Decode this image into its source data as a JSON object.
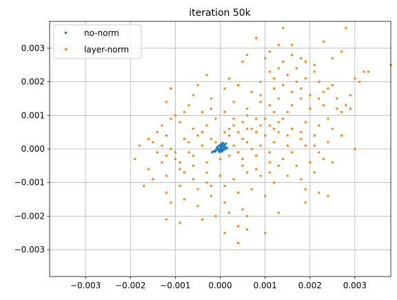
{
  "chart_data": {
    "type": "scatter",
    "title": "iteration 50k",
    "xlabel": "",
    "ylabel": "",
    "xlim": [
      -0.0038,
      0.0038
    ],
    "ylim": [
      -0.0038,
      0.0038
    ],
    "xticks": [
      -0.003,
      -0.002,
      -0.001,
      0.0,
      0.001,
      0.002,
      0.003
    ],
    "xtick_labels": [
      "−0.003",
      "−0.002",
      "−0.001",
      "0.000",
      "0.001",
      "0.002",
      "0.003"
    ],
    "yticks": [
      -0.003,
      -0.002,
      -0.001,
      0.0,
      0.001,
      0.002,
      0.003
    ],
    "ytick_labels": [
      "−0.003",
      "−0.002",
      "−0.001",
      "0.000",
      "0.001",
      "0.002",
      "0.003"
    ],
    "grid": true,
    "legend": "top-left",
    "series": [
      {
        "name": "no-norm",
        "color": "#1f77b4",
        "points": [
          [
            0.0,
            0.0
          ],
          [
            -5e-05,
            3e-05
          ],
          [
            4e-05,
            6e-05
          ],
          [
            8e-05,
            -2e-05
          ],
          [
            -0.0001,
            -5e-05
          ],
          [
            2e-05,
            0.00012
          ],
          [
            6e-05,
            0.00018
          ],
          [
            -3e-05,
            0.0001
          ],
          [
            0.0001,
            8e-05
          ],
          [
            -0.00012,
            -8e-05
          ],
          [
            1e-05,
            -6e-05
          ],
          [
            0.00012,
            0.0
          ],
          [
            -7e-05,
            5e-05
          ],
          [
            3e-05,
            0.00015
          ],
          [
            9e-05,
            0.00013
          ],
          [
            -0.00015,
            -7e-05
          ],
          [
            5e-05,
            -3e-05
          ],
          [
            -2e-05,
            -9e-05
          ],
          [
            0.00011,
            5e-05
          ],
          [
            0.0,
            9e-05
          ],
          [
            -9e-05,
            -2e-05
          ],
          [
            7e-05,
            0.0001
          ],
          [
            4e-05,
            -8e-05
          ],
          [
            -6e-05,
            1e-05
          ],
          [
            0.00013,
            0.00016
          ],
          [
            -0.00018,
            -0.0001
          ],
          [
            2e-05,
            4e-05
          ],
          [
            0.00015,
            3e-05
          ],
          [
            -4e-05,
            -4e-05
          ],
          [
            6e-05,
            2e-05
          ]
        ]
      },
      {
        "name": "layer-norm",
        "color": "#ff7f0e",
        "points": [
          [
            0.0014,
            0.0036
          ],
          [
            0.0028,
            0.0036
          ],
          [
            0.0023,
            0.0032
          ],
          [
            0.0008,
            0.0033
          ],
          [
            0.0038,
            0.0025
          ],
          [
            0.0033,
            0.0023
          ],
          [
            0.0027,
            0.0029
          ],
          [
            0.0025,
            0.0027
          ],
          [
            0.003,
            0.0021
          ],
          [
            0.0031,
            0.002
          ],
          [
            0.0006,
            0.0028
          ],
          [
            0.001,
            0.0027
          ],
          [
            0.0005,
            0.0026
          ],
          [
            0.0016,
            0.0028
          ],
          [
            0.0019,
            0.0026
          ],
          [
            0.0013,
            0.0024
          ],
          [
            0.0015,
            0.0022
          ],
          [
            0.0012,
            0.0021
          ],
          [
            0.0017,
            0.002
          ],
          [
            0.0014,
            0.0019
          ],
          [
            0.0021,
            0.0023
          ],
          [
            0.0022,
            0.002
          ],
          [
            0.0024,
            0.0018
          ],
          [
            0.0026,
            0.0015
          ],
          [
            0.0029,
            0.0012
          ],
          [
            0.0027,
            0.0011
          ],
          [
            0.0023,
            0.0013
          ],
          [
            0.002,
            0.0012
          ],
          [
            0.0018,
            0.0015
          ],
          [
            0.0016,
            0.0013
          ],
          [
            0.0011,
            0.0023
          ],
          [
            0.0009,
            0.002
          ],
          [
            0.0007,
            0.0017
          ],
          [
            0.0004,
            0.0019
          ],
          [
            0.0002,
            0.0021
          ],
          [
            0.0001,
            0.0018
          ],
          [
            -0.0003,
            0.0022
          ],
          [
            -0.0005,
            0.0019
          ],
          [
            -0.0002,
            0.0015
          ],
          [
            -0.0006,
            0.0016
          ],
          [
            -0.0011,
            0.0018
          ],
          [
            -0.0007,
            0.0013
          ],
          [
            -0.001,
            0.001
          ],
          [
            -0.0012,
            0.0014
          ],
          [
            -0.0004,
            0.0011
          ],
          [
            0.0003,
            0.0014
          ],
          [
            0.0006,
            0.0012
          ],
          [
            0.0009,
            0.0016
          ],
          [
            0.0012,
            0.0011
          ],
          [
            0.0014,
            0.0009
          ],
          [
            0.0011,
            0.0007
          ],
          [
            0.0008,
            0.0009
          ],
          [
            0.0005,
            0.0008
          ],
          [
            0.0002,
            0.0006
          ],
          [
            -0.0001,
            0.0009
          ],
          [
            -0.0003,
            0.0007
          ],
          [
            -0.0006,
            0.0006
          ],
          [
            -0.0009,
            0.0008
          ],
          [
            -0.0013,
            0.0007
          ],
          [
            -0.0012,
            0.0004
          ],
          [
            -0.0015,
            0.0002
          ],
          [
            -0.0018,
            0.0001
          ],
          [
            -0.0014,
            -0.0001
          ],
          [
            -0.0011,
            0.0
          ],
          [
            -0.0008,
            0.0003
          ],
          [
            -0.0005,
            0.0004
          ],
          [
            -0.0002,
            0.0003
          ],
          [
            0.0001,
            0.0005
          ],
          [
            0.0004,
            0.0005
          ],
          [
            0.0007,
            0.0006
          ],
          [
            0.001,
            0.0004
          ],
          [
            0.0013,
            0.0005
          ],
          [
            0.0016,
            0.0006
          ],
          [
            0.0019,
            0.0008
          ],
          [
            0.0022,
            0.0007
          ],
          [
            0.0025,
            0.0006
          ],
          [
            0.0027,
            0.0004
          ],
          [
            0.003,
            0.0
          ],
          [
            0.0024,
            0.0002
          ],
          [
            0.0021,
            0.0001
          ],
          [
            0.0018,
            0.0003
          ],
          [
            0.0015,
            0.0001
          ],
          [
            0.0012,
            0.0002
          ],
          [
            0.0009,
            0.0001
          ],
          [
            0.0006,
            0.0002
          ],
          [
            0.0003,
            0.0001
          ],
          [
            -0.0004,
            0.0001
          ],
          [
            -0.0007,
            -0.0001
          ],
          [
            -0.001,
            -0.0003
          ],
          [
            -0.0013,
            -0.0004
          ],
          [
            -0.0016,
            -0.0006
          ],
          [
            -0.0019,
            -0.0003
          ],
          [
            -0.0015,
            -0.0009
          ],
          [
            -0.0017,
            -0.0011
          ],
          [
            -0.0012,
            -0.0008
          ],
          [
            -0.0009,
            -0.0006
          ],
          [
            -0.0006,
            -0.0005
          ],
          [
            -0.0003,
            -0.0004
          ],
          [
            0.0,
            -0.0003
          ],
          [
            0.0002,
            -0.0002
          ],
          [
            0.0005,
            -0.0003
          ],
          [
            0.0008,
            -0.0002
          ],
          [
            0.0011,
            -0.0004
          ],
          [
            0.0014,
            -0.0003
          ],
          [
            0.0017,
            -0.0005
          ],
          [
            0.002,
            -0.0004
          ],
          [
            0.0023,
            -0.0003
          ],
          [
            0.0025,
            -0.0004
          ],
          [
            0.0021,
            -0.0007
          ],
          [
            0.0018,
            -0.0009
          ],
          [
            0.0015,
            -0.0008
          ],
          [
            0.0012,
            -0.001
          ],
          [
            0.0009,
            -0.0008
          ],
          [
            0.0006,
            -0.0007
          ],
          [
            0.0003,
            -0.0009
          ],
          [
            0.0,
            -0.0008
          ],
          [
            -0.0003,
            -0.001
          ],
          [
            -0.0006,
            -0.0009
          ],
          [
            -0.0009,
            -0.0011
          ],
          [
            -0.0012,
            -0.0013
          ],
          [
            -0.0011,
            -0.0016
          ],
          [
            -0.0008,
            -0.0015
          ],
          [
            -0.0005,
            -0.0017
          ],
          [
            -0.0002,
            -0.0014
          ],
          [
            0.0001,
            -0.0016
          ],
          [
            0.0004,
            -0.0013
          ],
          [
            0.0007,
            -0.0012
          ],
          [
            0.001,
            -0.0014
          ],
          [
            0.0019,
            -0.0012
          ],
          [
            0.0022,
            -0.0013
          ],
          [
            0.0024,
            -0.0014
          ],
          [
            -0.0012,
            -0.0021
          ],
          [
            -0.0009,
            -0.0022
          ],
          [
            -0.0004,
            -0.0021
          ],
          [
            -0.0001,
            -0.002
          ],
          [
            0.0002,
            -0.0019
          ],
          [
            0.0005,
            -0.0018
          ],
          [
            0.0006,
            -0.002
          ],
          [
            0.0004,
            -0.0023
          ],
          [
            0.0006,
            -0.0024
          ],
          [
            0.0001,
            -0.0025
          ],
          [
            0.0004,
            -0.0028
          ],
          [
            0.001,
            -0.0025
          ],
          [
            0.0013,
            -0.0019
          ],
          [
            0.0019,
            -0.0016
          ],
          [
            0.0009,
            0.0014
          ],
          [
            0.0011,
            0.0013
          ],
          [
            0.0013,
            0.0015
          ],
          [
            0.0016,
            0.0017
          ],
          [
            0.0018,
            0.0018
          ],
          [
            0.002,
            0.0016
          ],
          [
            0.0022,
            0.0015
          ],
          [
            0.0008,
            0.0005
          ],
          [
            0.0005,
            0.0003
          ],
          [
            0.0007,
            0.0
          ],
          [
            0.0004,
            -0.0001
          ],
          [
            0.0011,
            -0.0001
          ],
          [
            0.0013,
            0.0008
          ],
          [
            0.0015,
            0.0011
          ],
          [
            0.0017,
            0.0024
          ],
          [
            0.0019,
            0.0021
          ],
          [
            0.0014,
            0.0026
          ],
          [
            0.0012,
            0.0018
          ],
          [
            0.001,
            0.0009
          ],
          [
            0.0006,
            0.001
          ],
          [
            0.0003,
            0.0009
          ],
          [
            0.0001,
            0.0011
          ],
          [
            -0.0002,
            0.0012
          ],
          [
            -0.0008,
            0.0011
          ],
          [
            -0.0011,
            0.0009
          ],
          [
            -0.0014,
            0.0005
          ],
          [
            -0.0016,
            0.0003
          ],
          [
            -0.0013,
            0.0001
          ],
          [
            -0.001,
            -0.0001
          ],
          [
            -0.0007,
            0.0002
          ],
          [
            -0.0004,
            0.0005
          ],
          [
            -0.0001,
            0.0002
          ],
          [
            0.0002,
            0.0004
          ],
          [
            0.0003,
            0.0007
          ],
          [
            0.0006,
            0.0006
          ],
          [
            0.0009,
            0.0007
          ],
          [
            0.0012,
            0.0006
          ],
          [
            0.0015,
            0.0004
          ],
          [
            0.0018,
            0.0005
          ],
          [
            0.0021,
            0.0004
          ],
          [
            0.0024,
            0.0009
          ],
          [
            0.0026,
            0.0012
          ],
          [
            0.0028,
            0.0013
          ],
          [
            0.0032,
            0.0023
          ],
          [
            0.0029,
            0.0016
          ],
          [
            0.0025,
            0.0019
          ],
          [
            0.0023,
            0.0017
          ],
          [
            0.0016,
            0.0031
          ],
          [
            0.0011,
            0.0029
          ],
          [
            0.0013,
            0.0031
          ],
          [
            0.0018,
            0.0027
          ],
          [
            0.0021,
            0.0025
          ],
          [
            -0.0003,
            -0.0007
          ],
          [
            -0.0006,
            -0.0002
          ],
          [
            -0.0009,
            -0.0004
          ],
          [
            -0.0012,
            -0.0002
          ],
          [
            -0.0008,
            -0.0007
          ],
          [
            -0.0005,
            -0.0012
          ],
          [
            -0.0002,
            -0.0011
          ],
          [
            0.0001,
            -0.0011
          ],
          [
            0.0005,
            -0.0005
          ],
          [
            0.0008,
            -0.0006
          ],
          [
            0.0011,
            -0.0007
          ],
          [
            0.0013,
            -0.0005
          ],
          [
            0.0016,
            -0.0001
          ],
          [
            0.0019,
            0.0001
          ],
          [
            0.0022,
            -0.0001
          ]
        ]
      }
    ]
  }
}
